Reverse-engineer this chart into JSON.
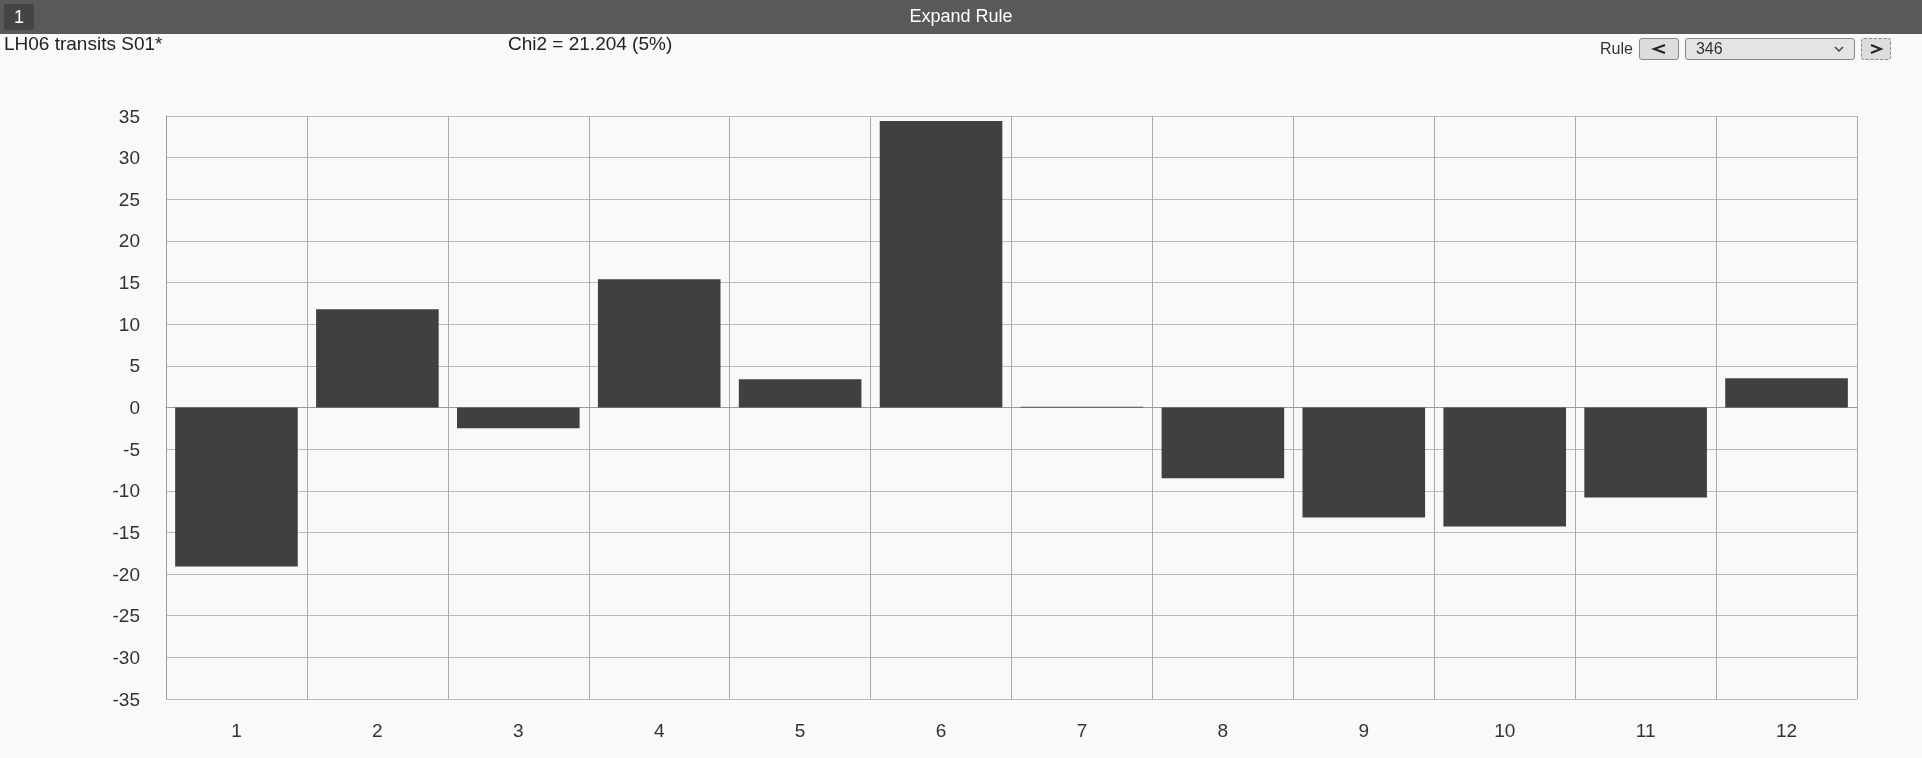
{
  "chart_data": {
    "type": "bar",
    "title": "LH06 transits S01*",
    "subtitle": "Chi2 = 21.204 (5%)",
    "annotations": [
      "1",
      "Expand Rule",
      "Rule",
      "346"
    ],
    "categories": [
      "1",
      "2",
      "3",
      "4",
      "5",
      "6",
      "7",
      "8",
      "9",
      "10",
      "11",
      "12"
    ],
    "values": [
      -19.1,
      11.8,
      -2.5,
      15.4,
      3.4,
      34.4,
      0.1,
      -8.5,
      -13.2,
      -14.3,
      -10.8,
      3.5
    ],
    "color": "#404040",
    "ylim": [
      -35,
      35
    ],
    "yticks": [
      -35,
      -30,
      -25,
      -20,
      -15,
      -10,
      -5,
      0,
      5,
      10,
      15,
      20,
      25,
      30,
      35
    ],
    "grid": true
  }
}
